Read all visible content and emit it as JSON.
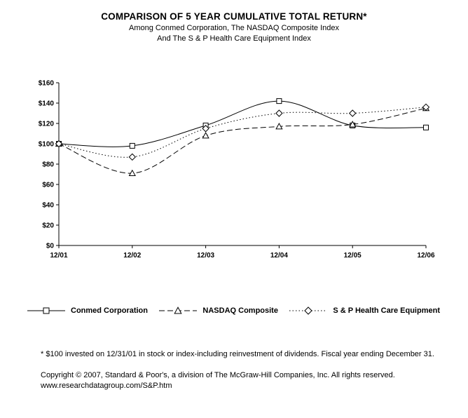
{
  "title": "COMPARISON OF 5 YEAR CUMULATIVE TOTAL RETURN*",
  "subtitle_line1": "Among Conmed Corporation, The NASDAQ Composite Index",
  "subtitle_line2": "And The S & P Health Care Equipment Index",
  "chart_data": {
    "type": "line",
    "x": [
      "12/01",
      "12/02",
      "12/03",
      "12/04",
      "12/05",
      "12/06"
    ],
    "series": [
      {
        "name": "Conmed Corporation",
        "marker": "square",
        "line": "solid",
        "values": [
          100,
          98,
          118,
          142,
          118,
          116
        ]
      },
      {
        "name": "NASDAQ Composite",
        "marker": "triangle",
        "line": "dashed",
        "values": [
          100,
          71,
          108,
          117,
          119,
          135
        ]
      },
      {
        "name": "S & P Health Care Equipment",
        "marker": "diamond",
        "line": "dotted",
        "values": [
          100,
          87,
          115,
          130,
          130,
          136
        ]
      }
    ],
    "ylim": [
      0,
      160
    ],
    "ytick_step": 20,
    "ytick_labels": [
      "$0",
      "$20",
      "$40",
      "$60",
      "$80",
      "$100",
      "$120",
      "$140",
      "$160"
    ],
    "grid": false,
    "legend_position": "bottom"
  },
  "footnote": "* $100 invested on 12/31/01 in stock or index-including reinvestment of dividends.  Fiscal year ending December 31.",
  "copyright_line1": "Copyright © 2007, Standard & Poor's, a division of The McGraw-Hill Companies, Inc. All rights reserved.",
  "copyright_line2": "www.researchdatagroup.com/S&P.htm"
}
